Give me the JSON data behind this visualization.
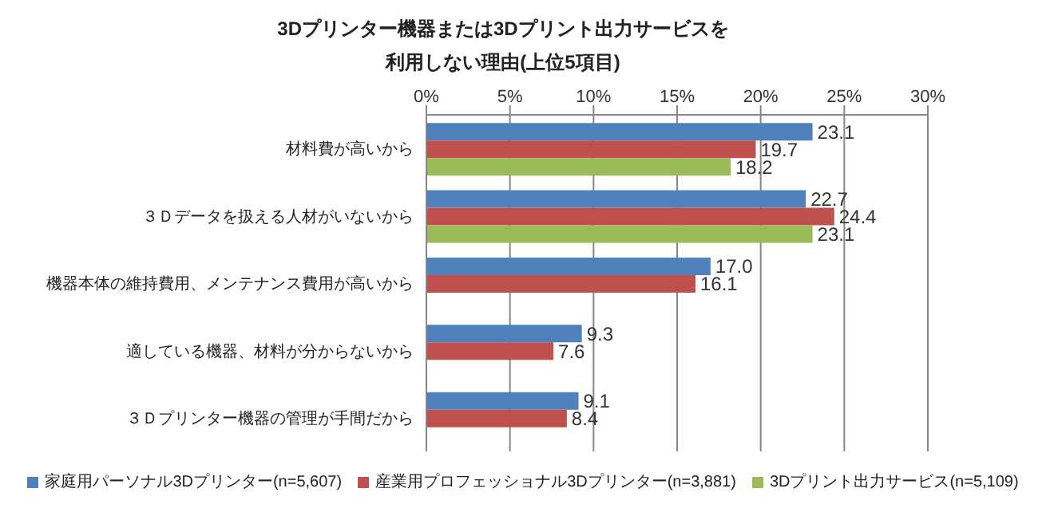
{
  "chart_data": {
    "type": "bar",
    "orientation": "horizontal",
    "title": "3Dプリンター機器または3Dプリント出力サービスを利用しない理由(上位5項目)",
    "categories": [
      "材料費が高いから",
      "３Ｄデータを扱える人材がいないから",
      "機器本体の維持費用、メンテナンス費用が高いから",
      "適している機器、材料が分からないから",
      "３Ｄプリンター機器の管理が手間だから"
    ],
    "series": [
      {
        "name": "家庭用パーソナル3Dプリンター(n=5,607)",
        "color": "#4f81bd",
        "values": [
          23.1,
          22.7,
          17.0,
          9.3,
          9.1
        ],
        "value_labels": [
          "23.1",
          "22.7",
          "17.0",
          "9.3",
          "9.1"
        ]
      },
      {
        "name": "産業用プロフェッショナル3Dプリンター(n=3,881)",
        "color": "#c0504d",
        "values": [
          19.7,
          24.4,
          16.1,
          7.6,
          8.4
        ],
        "value_labels": [
          "19.7",
          "24.4",
          "16.1",
          "7.6",
          "8.4"
        ]
      },
      {
        "name": "3Dプリント出力サービス(n=5,109)",
        "color": "#9bbb59",
        "values": [
          18.2,
          23.1,
          null,
          null,
          null
        ],
        "value_labels": [
          "18.2",
          "23.1",
          null,
          null,
          null
        ]
      }
    ],
    "xlim": [
      0,
      30
    ],
    "xticks": [
      {
        "value": 0,
        "label": "0%"
      },
      {
        "value": 5,
        "label": "5%"
      },
      {
        "value": 10,
        "label": "10%"
      },
      {
        "value": 15,
        "label": "15%"
      },
      {
        "value": 20,
        "label": "20%"
      },
      {
        "value": 25,
        "label": "25%"
      },
      {
        "value": 30,
        "label": "30%"
      }
    ],
    "grid": "x",
    "legend": "bottom"
  }
}
